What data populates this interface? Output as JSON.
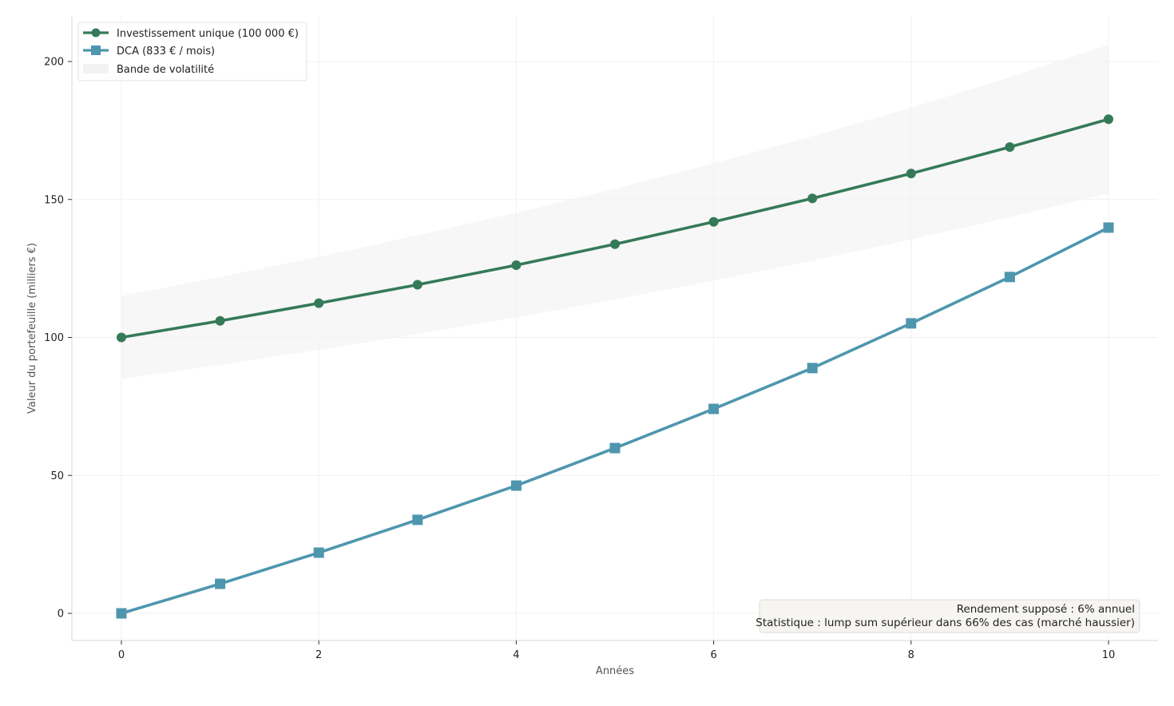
{
  "chart_data": {
    "type": "line",
    "title": "",
    "xlabel": "Années",
    "ylabel": "Valeur du portefeuille (milliers €)",
    "x": [
      0,
      1,
      2,
      3,
      4,
      5,
      6,
      7,
      8,
      9,
      10
    ],
    "xlim": [
      -0.5,
      10.5
    ],
    "ylim": [
      -10,
      216
    ],
    "xticks": [
      0,
      2,
      4,
      6,
      8,
      10
    ],
    "yticks": [
      0,
      50,
      100,
      150,
      200
    ],
    "grid": true,
    "legend_position": "upper left",
    "series": [
      {
        "name": "Investissement unique (100 000 €)",
        "marker": "circle",
        "color": "#357a58",
        "values": [
          100.0,
          106.0,
          112.4,
          119.1,
          126.2,
          133.8,
          141.9,
          150.4,
          159.4,
          169.0,
          179.1
        ]
      },
      {
        "name": "DCA (833 € / mois)",
        "marker": "square",
        "color": "#4e96ae",
        "values": [
          0.0,
          10.7,
          22.0,
          33.9,
          46.3,
          59.9,
          74.1,
          88.9,
          105.1,
          121.9,
          139.8
        ]
      }
    ],
    "band": {
      "name": "Bande de volatilité",
      "color": "#f2f2f2",
      "upper": [
        115.0,
        121.9,
        129.2,
        137.0,
        145.2,
        153.9,
        163.1,
        172.9,
        183.3,
        194.3,
        206.0
      ],
      "lower": [
        85.0,
        90.1,
        95.5,
        101.2,
        107.3,
        113.7,
        120.6,
        127.8,
        135.5,
        143.6,
        152.2
      ]
    },
    "annotation": {
      "lines": [
        "Rendement supposé : 6% annuel",
        "Statistique : lump sum supérieur dans 66% des cas (marché haussier)"
      ],
      "position": "lower right"
    }
  },
  "legend": {
    "items": [
      {
        "label": "Investissement unique (100 000 €)",
        "icon": "line-circle-icon"
      },
      {
        "label": "DCA (833 € / mois)",
        "icon": "line-square-icon"
      },
      {
        "label": "Bande de volatilité",
        "icon": "band-swatch-icon"
      }
    ]
  },
  "axes": {
    "x_label": "Années",
    "y_label": "Valeur du portefeuille (milliers €)"
  },
  "annotation": {
    "line1": "Rendement supposé : 6% annuel",
    "line2": "Statistique : lump sum supérieur dans 66% des cas (marché haussier)"
  }
}
